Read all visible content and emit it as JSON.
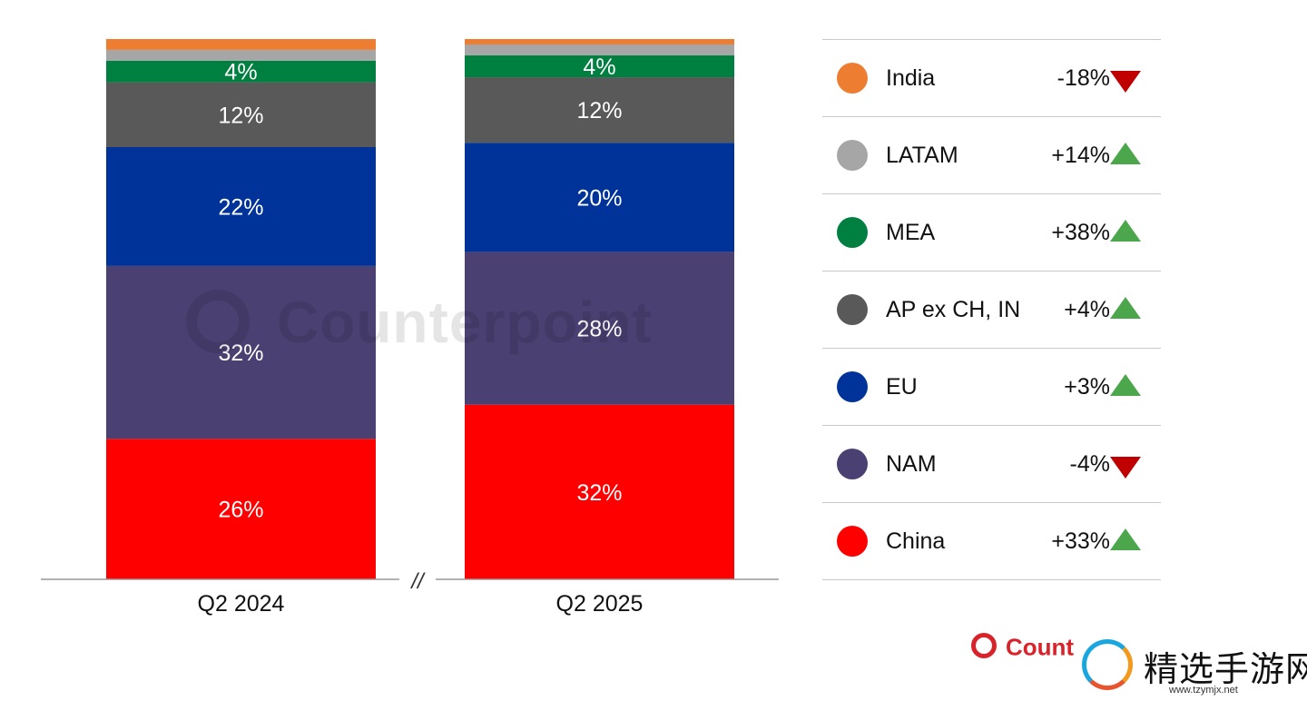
{
  "chart_data": {
    "type": "bar",
    "stacked": true,
    "normalized_percent": true,
    "categories": [
      "Q2 2024",
      "Q2 2025"
    ],
    "series": [
      {
        "name": "China",
        "color": "#ff0000",
        "values": [
          26,
          32
        ]
      },
      {
        "name": "NAM",
        "color": "#4b4072",
        "values": [
          32,
          28
        ]
      },
      {
        "name": "EU",
        "color": "#003399",
        "values": [
          22,
          20
        ]
      },
      {
        "name": "AP ex CH, IN",
        "color": "#595959",
        "values": [
          12,
          12
        ]
      },
      {
        "name": "MEA",
        "color": "#008040",
        "values": [
          4,
          4
        ]
      },
      {
        "name": "LATAM",
        "color": "#a6a6a6",
        "values": [
          2,
          2
        ]
      },
      {
        "name": "India",
        "color": "#ed7d31",
        "values": [
          2,
          1
        ]
      }
    ],
    "data_labels": [
      {
        "series": "China",
        "labels": [
          "26%",
          "32%"
        ]
      },
      {
        "series": "NAM",
        "labels": [
          "32%",
          "28%"
        ]
      },
      {
        "series": "EU",
        "labels": [
          "22%",
          "20%"
        ]
      },
      {
        "series": "AP ex CH, IN",
        "labels": [
          "12%",
          "12%"
        ]
      },
      {
        "series": "MEA",
        "labels": [
          "4%",
          "4%"
        ]
      }
    ],
    "axis_break_label": "//",
    "legend_placement": "right",
    "legend": [
      {
        "name": "India",
        "change": "-18%",
        "direction": "down"
      },
      {
        "name": "LATAM",
        "change": "+14%",
        "direction": "up"
      },
      {
        "name": "MEA",
        "change": "+38%",
        "direction": "up"
      },
      {
        "name": "AP ex CH, IN",
        "change": "+4%",
        "direction": "up"
      },
      {
        "name": "EU",
        "change": "+3%",
        "direction": "up"
      },
      {
        "name": "NAM",
        "change": "-4%",
        "direction": "down"
      },
      {
        "name": "China",
        "change": "+33%",
        "direction": "up"
      }
    ]
  },
  "colors": {
    "up_arrow": "#4ca64c",
    "down_arrow": "#c00000",
    "brand": "#d8232a"
  },
  "watermark": "Counterpoint",
  "brand": {
    "text": "Count"
  },
  "site": {
    "name": "精选手游网",
    "url": "www.tzymjx.net"
  }
}
